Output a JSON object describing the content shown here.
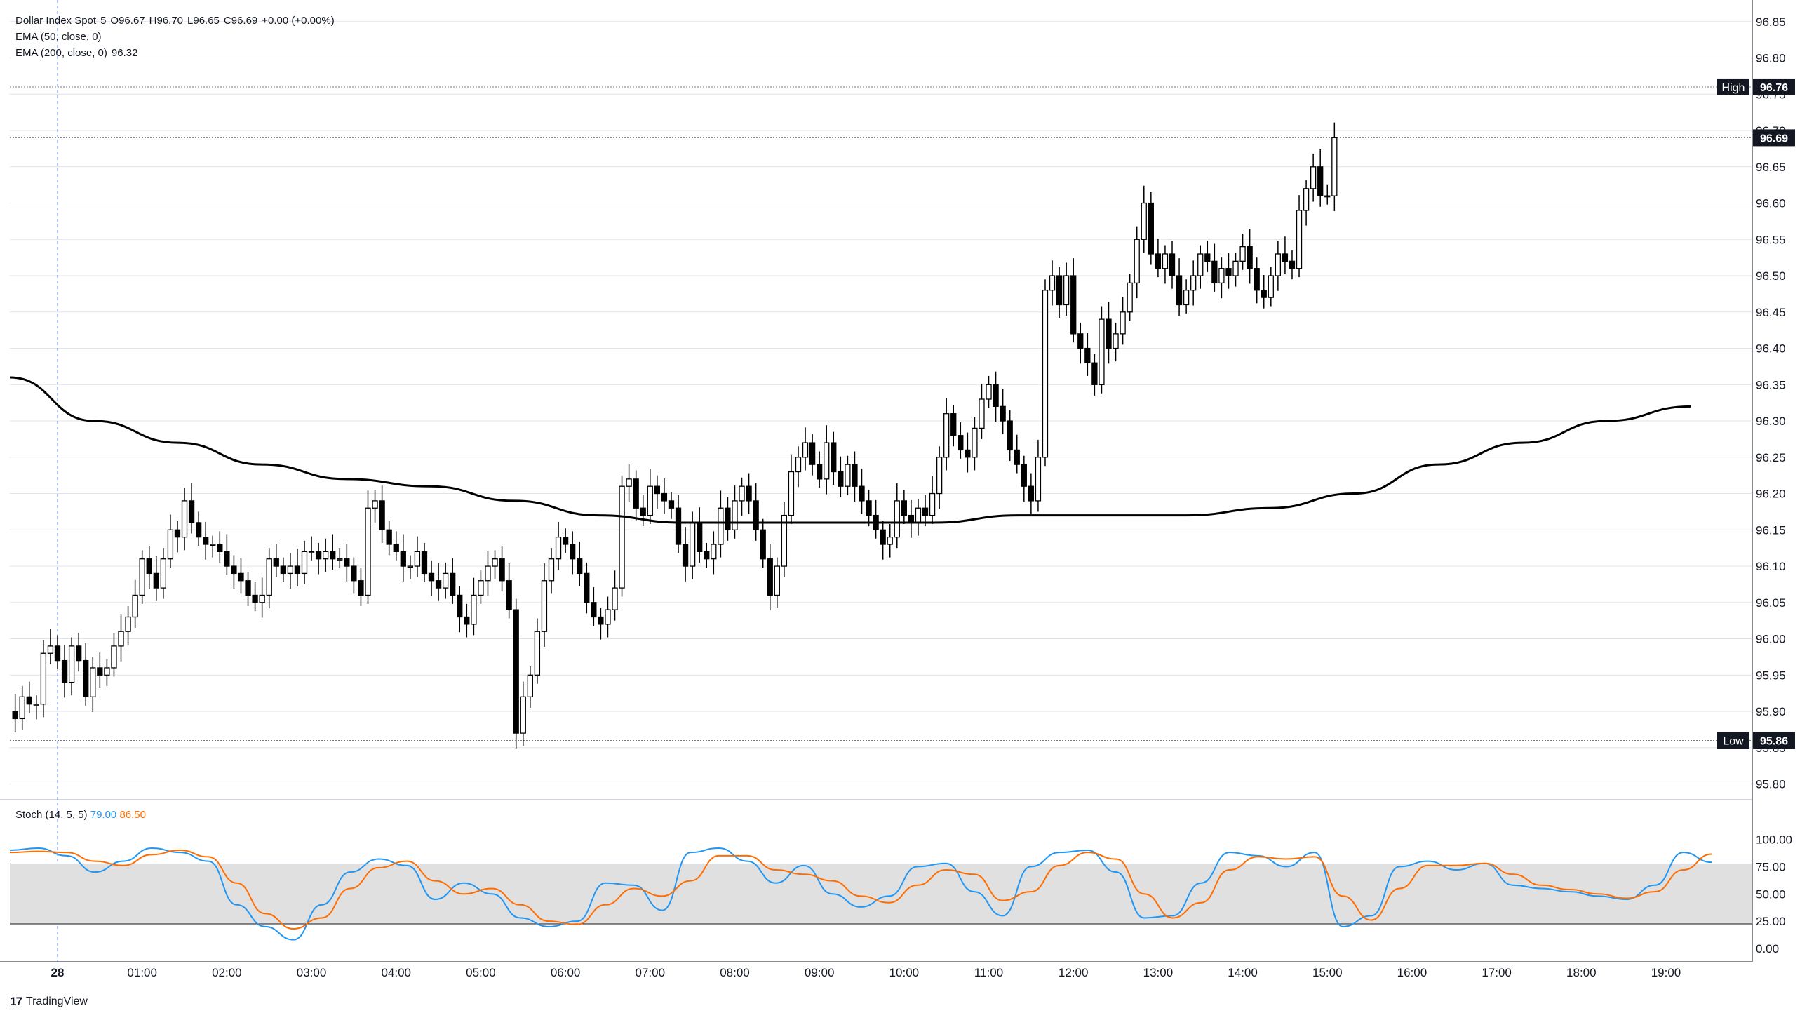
{
  "header": {
    "symbol": "Dollar Index Spot",
    "interval": "5",
    "open": "O96.67",
    "high": "H96.70",
    "low": "L96.65",
    "close": "C96.69",
    "change": "+0.00 (+0.00%)",
    "ema50_label": "EMA (50, close, 0)",
    "ema200_label": "EMA (200, close, 0)",
    "ema200_value": "96.32"
  },
  "stoch": {
    "label": "Stoch (14, 5, 5)",
    "k_value": "79.00",
    "d_value": "86.50"
  },
  "markers": {
    "high_label": "High",
    "high_value": "96.76",
    "low_label": "Low",
    "low_value": "95.86",
    "last_value": "96.69"
  },
  "brand": "TradingView",
  "colors": {
    "up": "#ffffff",
    "down": "#000000",
    "wick": "#000000",
    "ema200": "#000000",
    "stoch_k": "#2196f3",
    "stoch_d": "#ff6d00",
    "stoch_band": "#e0e0e0",
    "grid": "#e0e3eb"
  },
  "chart_data": [
    {
      "type": "candlestick",
      "timeframe_minutes": 5,
      "x_start": "00:00",
      "x_ticks": [
        "28",
        "01:00",
        "02:00",
        "03:00",
        "04:00",
        "05:00",
        "06:00",
        "07:00",
        "08:00",
        "09:00",
        "10:00",
        "11:00",
        "12:00",
        "13:00",
        "14:00",
        "15:00",
        "16:00",
        "17:00",
        "18:00",
        "19:00"
      ],
      "y_ticks": [
        "96.85",
        "96.80",
        "96.75",
        "96.70",
        "96.65",
        "96.60",
        "96.55",
        "96.50",
        "96.45",
        "96.40",
        "96.35",
        "96.30",
        "96.25",
        "96.20",
        "96.15",
        "96.10",
        "96.05",
        "96.00",
        "95.95",
        "95.90",
        "95.85",
        "95.80"
      ],
      "ylim": [
        95.77,
        96.88
      ],
      "session_high": 96.76,
      "session_low": 95.86,
      "last_close": 96.69,
      "closes": [
        95.92,
        95.9,
        95.89,
        95.92,
        95.91,
        95.91,
        95.98,
        95.99,
        95.97,
        95.94,
        95.99,
        95.97,
        95.92,
        95.96,
        95.95,
        95.96,
        95.99,
        96.01,
        96.03,
        96.06,
        96.11,
        96.09,
        96.07,
        96.11,
        96.15,
        96.14,
        96.19,
        96.16,
        96.14,
        96.13,
        96.13,
        96.12,
        96.1,
        96.09,
        96.08,
        96.06,
        96.05,
        96.06,
        96.11,
        96.1,
        96.09,
        96.1,
        96.09,
        96.12,
        96.12,
        96.11,
        96.12,
        96.11,
        96.11,
        96.1,
        96.08,
        96.06,
        96.18,
        96.19,
        96.15,
        96.13,
        96.12,
        96.1,
        96.1,
        96.12,
        96.09,
        96.08,
        96.07,
        96.09,
        96.06,
        96.03,
        96.02,
        96.06,
        96.08,
        96.1,
        96.11,
        96.08,
        96.04,
        95.87,
        95.92,
        95.95,
        96.01,
        96.08,
        96.11,
        96.14,
        96.13,
        96.11,
        96.09,
        96.05,
        96.03,
        96.02,
        96.04,
        96.07,
        96.21,
        96.22,
        96.18,
        96.17,
        96.21,
        96.2,
        96.19,
        96.18,
        96.13,
        96.1,
        96.16,
        96.12,
        96.11,
        96.13,
        96.18,
        96.15,
        96.19,
        96.21,
        96.19,
        96.15,
        96.11,
        96.06,
        96.1,
        96.17,
        96.23,
        96.25,
        96.27,
        96.24,
        96.22,
        96.27,
        96.23,
        96.21,
        96.24,
        96.21,
        96.19,
        96.17,
        96.15,
        96.13,
        96.14,
        96.19,
        96.17,
        96.16,
        96.18,
        96.17,
        96.2,
        96.25,
        96.31,
        96.28,
        96.26,
        96.25,
        96.29,
        96.33,
        96.35,
        96.32,
        96.3,
        96.26,
        96.24,
        96.21,
        96.19,
        96.25,
        96.48,
        96.5,
        96.46,
        96.5,
        96.42,
        96.4,
        96.38,
        96.35,
        96.44,
        96.4,
        96.42,
        96.45,
        96.49,
        96.55,
        96.6,
        96.53,
        96.51,
        96.53,
        96.5,
        96.46,
        96.48,
        96.5,
        96.53,
        96.52,
        96.49,
        96.51,
        96.5,
        96.52,
        96.54,
        96.51,
        96.48,
        96.47,
        96.5,
        96.53,
        96.52,
        96.51,
        96.59,
        96.62,
        96.65,
        96.61,
        96.61,
        96.69
      ]
    },
    {
      "type": "line",
      "name": "EMA (200, close, 0)",
      "x_start": "00:00",
      "values_5min_step_12": [
        96.36,
        96.3,
        96.27,
        96.24,
        96.22,
        96.21,
        96.19,
        96.17,
        96.16,
        96.16,
        96.16,
        96.16,
        96.17,
        96.17,
        96.17,
        96.18,
        96.2,
        96.24,
        96.27,
        96.3,
        96.32
      ]
    },
    {
      "type": "line",
      "name": "Stoch (14, 5, 5)",
      "ylim": [
        0,
        100
      ],
      "y_ticks": [
        "100.00",
        "75.00",
        "50.00",
        "25.00",
        "0.00"
      ],
      "band": [
        20,
        80
      ],
      "series": [
        {
          "name": "%K",
          "last": 79.0,
          "points_every_minutes": 15,
          "values": [
            90,
            92,
            85,
            70,
            80,
            92,
            88,
            80,
            40,
            20,
            8,
            40,
            70,
            82,
            76,
            45,
            60,
            50,
            28,
            20,
            25,
            60,
            58,
            35,
            88,
            92,
            80,
            60,
            76,
            50,
            38,
            48,
            75,
            78,
            52,
            30,
            75,
            88,
            90,
            70,
            28,
            30,
            60,
            88,
            85,
            75,
            88,
            20,
            30,
            75,
            80,
            72,
            78,
            58,
            55,
            52,
            48,
            45,
            58,
            88,
            79
          ]
        },
        {
          "name": "%D",
          "last": 86.5,
          "points_every_minutes": 15,
          "values": [
            88,
            89,
            88,
            80,
            76,
            86,
            90,
            84,
            60,
            32,
            18,
            28,
            55,
            74,
            80,
            62,
            50,
            55,
            40,
            25,
            22,
            40,
            55,
            48,
            62,
            85,
            85,
            72,
            68,
            62,
            48,
            42,
            58,
            72,
            68,
            44,
            52,
            76,
            88,
            82,
            50,
            28,
            42,
            72,
            84,
            82,
            84,
            48,
            26,
            55,
            76,
            76,
            78,
            68,
            58,
            54,
            50,
            46,
            52,
            72,
            86.5
          ]
        }
      ]
    }
  ]
}
